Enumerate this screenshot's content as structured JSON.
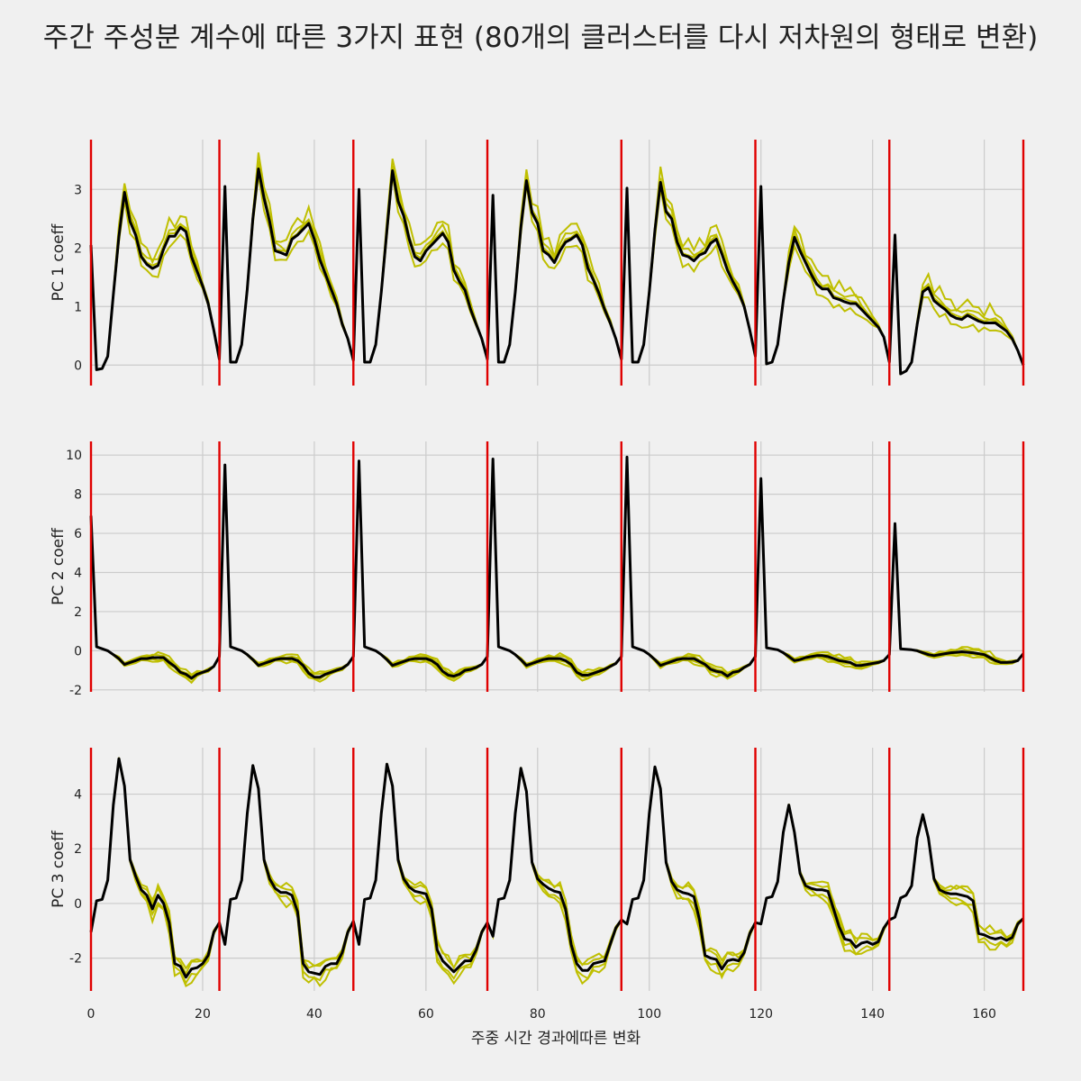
{
  "chart_data": {
    "type": "line",
    "title": "주간 주성분 계수에 따른 3가지 표현 (80개의 클러스터를 다시 저차원의 형태로 변환)",
    "xlabel": "주중 시간 경과에따른 변화",
    "xlim": [
      0,
      167
    ],
    "xticks": [
      0,
      20,
      40,
      60,
      80,
      100,
      120,
      140,
      160
    ],
    "day_boundaries": [
      0,
      23,
      47,
      71,
      95,
      119,
      143,
      167
    ],
    "colors": {
      "background": "#f0f0f0",
      "grid": "#cbcbcb",
      "cluster": "#bfbf00",
      "mean": "#000000",
      "boundary": "#e00000"
    },
    "panels": [
      {
        "ylabel": "PC 1 coeff",
        "ylim": [
          -0.35,
          3.85
        ],
        "yticks": [
          0,
          1,
          2,
          3
        ],
        "day_profiles": [
          [
            2.05,
            -0.08,
            -0.06,
            0.15,
            1.2,
            2.2,
            2.95,
            2.45,
            2.22,
            1.85,
            1.72,
            1.65,
            1.7,
            1.98,
            2.2,
            2.2,
            2.35,
            2.28,
            1.85,
            1.6,
            1.35,
            1.05,
            0.6,
            0.1
          ],
          [
            3.05,
            0.05,
            0.05,
            0.35,
            1.3,
            2.5,
            3.35,
            2.85,
            2.45,
            1.95,
            1.92,
            1.88,
            2.15,
            2.22,
            2.32,
            2.42,
            2.15,
            1.8,
            1.55,
            1.3,
            1.05,
            0.7,
            0.45,
            0.08
          ],
          [
            3.0,
            0.05,
            0.05,
            0.35,
            1.25,
            2.3,
            3.32,
            2.8,
            2.55,
            2.15,
            1.85,
            1.78,
            1.95,
            2.05,
            2.15,
            2.25,
            2.1,
            1.62,
            1.42,
            1.28,
            0.95,
            0.7,
            0.45,
            0.1
          ],
          [
            2.9,
            0.05,
            0.05,
            0.35,
            1.25,
            2.35,
            3.15,
            2.6,
            2.42,
            1.95,
            1.88,
            1.75,
            1.95,
            2.1,
            2.15,
            2.22,
            2.05,
            1.65,
            1.45,
            1.22,
            0.95,
            0.72,
            0.45,
            0.1
          ],
          [
            3.02,
            0.05,
            0.05,
            0.35,
            1.25,
            2.3,
            3.12,
            2.62,
            2.5,
            2.1,
            1.88,
            1.85,
            1.78,
            1.88,
            1.92,
            2.08,
            2.15,
            1.9,
            1.62,
            1.42,
            1.25,
            1.0,
            0.6,
            0.15
          ],
          [
            3.05,
            0.02,
            0.05,
            0.35,
            1.1,
            1.75,
            2.18,
            1.95,
            1.75,
            1.55,
            1.38,
            1.3,
            1.3,
            1.15,
            1.12,
            1.08,
            1.05,
            1.05,
            0.95,
            0.85,
            0.75,
            0.65,
            0.48,
            0.05
          ],
          [
            2.22,
            -0.15,
            -0.1,
            0.05,
            0.7,
            1.25,
            1.32,
            1.1,
            1.02,
            0.95,
            0.85,
            0.8,
            0.78,
            0.85,
            0.8,
            0.75,
            0.72,
            0.72,
            0.72,
            0.65,
            0.58,
            0.45,
            0.25,
            0.0
          ]
        ],
        "cluster_offsets": [
          0.1,
          -0.14,
          0.22,
          0.04
        ],
        "cluster_hour_weights": [
          0,
          0,
          0,
          0,
          0.2,
          0.6,
          1,
          1,
          1,
          1,
          1,
          1,
          1,
          1,
          1,
          1,
          1,
          1,
          0.8,
          0.6,
          0.4,
          0.2,
          0,
          0
        ]
      },
      {
        "ylabel": "PC 2 coeff",
        "ylim": [
          -2.1,
          10.7
        ],
        "yticks": [
          -2,
          0,
          2,
          4,
          6,
          8,
          10
        ],
        "day_profiles": [
          [
            6.9,
            0.2,
            0.1,
            0.0,
            -0.2,
            -0.4,
            -0.7,
            -0.6,
            -0.5,
            -0.4,
            -0.4,
            -0.35,
            -0.35,
            -0.35,
            -0.6,
            -0.8,
            -1.1,
            -1.2,
            -1.4,
            -1.2,
            -1.1,
            -1.0,
            -0.8,
            -0.3
          ],
          [
            9.5,
            0.2,
            0.1,
            0.0,
            -0.2,
            -0.45,
            -0.75,
            -0.65,
            -0.55,
            -0.45,
            -0.4,
            -0.4,
            -0.4,
            -0.5,
            -0.75,
            -1.15,
            -1.35,
            -1.35,
            -1.2,
            -1.1,
            -1.0,
            -0.9,
            -0.7,
            -0.3
          ],
          [
            9.7,
            0.2,
            0.1,
            0.0,
            -0.2,
            -0.45,
            -0.75,
            -0.65,
            -0.55,
            -0.45,
            -0.4,
            -0.4,
            -0.4,
            -0.5,
            -0.7,
            -1.05,
            -1.25,
            -1.3,
            -1.2,
            -1.0,
            -0.95,
            -0.85,
            -0.7,
            -0.3
          ],
          [
            9.8,
            0.2,
            0.1,
            0.0,
            -0.2,
            -0.45,
            -0.75,
            -0.65,
            -0.55,
            -0.45,
            -0.4,
            -0.4,
            -0.4,
            -0.5,
            -0.7,
            -1.1,
            -1.25,
            -1.25,
            -1.15,
            -1.05,
            -0.95,
            -0.8,
            -0.65,
            -0.3
          ],
          [
            9.9,
            0.2,
            0.1,
            0.0,
            -0.2,
            -0.45,
            -0.75,
            -0.65,
            -0.55,
            -0.45,
            -0.4,
            -0.4,
            -0.4,
            -0.55,
            -0.7,
            -0.95,
            -1.05,
            -1.1,
            -1.3,
            -1.1,
            -1.05,
            -0.85,
            -0.7,
            -0.3
          ],
          [
            8.8,
            0.15,
            0.1,
            0.05,
            -0.1,
            -0.3,
            -0.5,
            -0.45,
            -0.35,
            -0.3,
            -0.25,
            -0.25,
            -0.3,
            -0.4,
            -0.5,
            -0.55,
            -0.6,
            -0.75,
            -0.75,
            -0.7,
            -0.65,
            -0.6,
            -0.5,
            -0.2
          ],
          [
            6.5,
            0.1,
            0.08,
            0.05,
            0.0,
            -0.1,
            -0.2,
            -0.25,
            -0.2,
            -0.15,
            -0.1,
            -0.08,
            -0.05,
            -0.08,
            -0.1,
            -0.15,
            -0.2,
            -0.35,
            -0.5,
            -0.6,
            -0.6,
            -0.58,
            -0.5,
            -0.15
          ]
        ],
        "cluster_offsets": [
          0.12,
          -0.1,
          0.22,
          -0.2
        ],
        "cluster_hour_weights": [
          0,
          0,
          0,
          0,
          0.1,
          0.3,
          0.5,
          0.5,
          0.5,
          0.5,
          0.6,
          0.8,
          1,
          1,
          1,
          1,
          1,
          1,
          0.8,
          0.6,
          0.4,
          0.3,
          0.1,
          0
        ]
      },
      {
        "ylabel": "PC 3 coeff",
        "ylim": [
          -3.2,
          5.7
        ],
        "yticks": [
          -2,
          0,
          2,
          4
        ],
        "day_profiles": [
          [
            -1.05,
            0.1,
            0.15,
            0.85,
            3.6,
            5.3,
            4.3,
            1.6,
            1.0,
            0.5,
            0.3,
            -0.2,
            0.3,
            0.0,
            -0.7,
            -2.2,
            -2.3,
            -2.7,
            -2.4,
            -2.35,
            -2.2,
            -1.9,
            -1.05,
            -0.7
          ],
          [
            -1.5,
            0.15,
            0.2,
            0.85,
            3.3,
            5.05,
            4.2,
            1.6,
            0.9,
            0.55,
            0.4,
            0.4,
            0.3,
            -0.3,
            -2.2,
            -2.5,
            -2.55,
            -2.6,
            -2.3,
            -2.2,
            -2.2,
            -1.8,
            -1.05,
            -0.65
          ],
          [
            -1.5,
            0.15,
            0.2,
            0.85,
            3.3,
            5.1,
            4.3,
            1.6,
            0.9,
            0.6,
            0.45,
            0.4,
            0.35,
            -0.2,
            -1.7,
            -2.1,
            -2.3,
            -2.5,
            -2.3,
            -2.1,
            -2.1,
            -1.7,
            -1.05,
            -0.7
          ],
          [
            -1.2,
            0.15,
            0.2,
            0.85,
            3.3,
            4.95,
            4.1,
            1.5,
            0.9,
            0.7,
            0.55,
            0.45,
            0.4,
            -0.2,
            -1.5,
            -2.2,
            -2.45,
            -2.45,
            -2.2,
            -2.15,
            -2.1,
            -1.5,
            -0.9,
            -0.6
          ],
          [
            -0.75,
            0.15,
            0.2,
            0.85,
            3.3,
            5.0,
            4.2,
            1.5,
            0.8,
            0.5,
            0.4,
            0.35,
            0.25,
            -0.6,
            -1.9,
            -2.0,
            -2.05,
            -2.4,
            -2.1,
            -2.05,
            -2.1,
            -1.8,
            -1.1,
            -0.7
          ],
          [
            -0.75,
            0.2,
            0.25,
            0.8,
            2.6,
            3.6,
            2.6,
            1.1,
            0.65,
            0.55,
            0.5,
            0.5,
            0.45,
            -0.2,
            -0.85,
            -1.3,
            -1.35,
            -1.6,
            -1.45,
            -1.4,
            -1.5,
            -1.4,
            -0.9,
            -0.6
          ],
          [
            -0.5,
            0.2,
            0.3,
            0.65,
            2.4,
            3.25,
            2.4,
            0.9,
            0.5,
            0.4,
            0.35,
            0.35,
            0.3,
            0.25,
            0.1,
            -1.1,
            -1.15,
            -1.25,
            -1.3,
            -1.25,
            -1.35,
            -1.25,
            -0.75,
            -0.55
          ]
        ],
        "cluster_offsets": [
          0.22,
          -0.2,
          0.3,
          -0.35
        ],
        "cluster_hour_weights": [
          0,
          0,
          0,
          0,
          0.1,
          0.1,
          0.1,
          0.2,
          0.4,
          0.6,
          0.8,
          1,
          1,
          1,
          1,
          1,
          1,
          1,
          1,
          0.8,
          0.6,
          0.4,
          0.2,
          0
        ]
      }
    ]
  }
}
